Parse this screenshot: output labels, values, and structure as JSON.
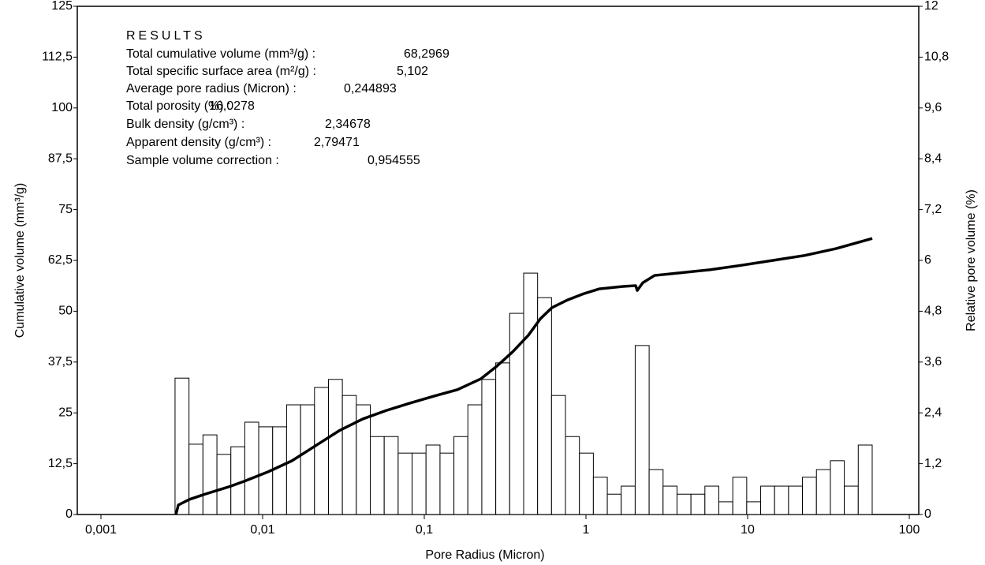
{
  "chart_data": {
    "type": "combo",
    "xlabel": "Pore Radius (Micron)",
    "ylabel": "Cumulative volume (mm³/g)",
    "y2label": "Relative pore volume (%)",
    "xscale": "log",
    "xlim": [
      0.000714,
      114.4
    ],
    "xticks": [
      {
        "value": 0.001,
        "label": "0,001"
      },
      {
        "value": 0.01,
        "label": "0,01"
      },
      {
        "value": 0.1,
        "label": "0,1"
      },
      1,
      10,
      100
    ],
    "ylim": [
      0,
      125
    ],
    "yticks": [
      0,
      {
        "value": 12.5,
        "label": "12,5"
      },
      25,
      {
        "value": 37.5,
        "label": "37,5"
      },
      50,
      {
        "value": 62.5,
        "label": "62,5"
      },
      75,
      {
        "value": 87.5,
        "label": "87,5"
      },
      100,
      {
        "value": 112.5,
        "label": "112,5"
      },
      125
    ],
    "y2lim": [
      0,
      12
    ],
    "y2ticks": [
      0,
      {
        "value": 1.2,
        "label": "1,2"
      },
      {
        "value": 2.4,
        "label": "2,4"
      },
      {
        "value": 3.6,
        "label": "3,6"
      },
      {
        "value": 4.8,
        "label": "4,8"
      },
      6,
      {
        "value": 7.2,
        "label": "7,2"
      },
      {
        "value": 8.4,
        "label": "8,4"
      },
      {
        "value": 9.6,
        "label": "9,6"
      },
      {
        "value": 10.8,
        "label": "10,8"
      },
      12
    ],
    "series": [
      {
        "type": "histogram",
        "axis": "y2",
        "color": "#ffffff",
        "edge_color": "#000000",
        "bins": [
          0.002873,
          0.003505,
          0.004276,
          0.005217,
          0.006362,
          0.007758,
          0.009461,
          0.01154,
          0.01407,
          0.01717,
          0.02094,
          0.02554,
          0.03114,
          0.03799,
          0.04633,
          0.05651,
          0.06893,
          0.08408,
          0.1025,
          0.1251,
          0.1525,
          0.186,
          0.2269,
          0.2767,
          0.3375,
          0.4117,
          0.5022,
          0.6124,
          0.7469,
          0.911,
          1.111,
          1.355,
          1.652,
          2.016,
          2.459,
          2.999,
          3.658,
          4.461,
          5.441,
          6.636,
          8.093,
          9.87,
          12.04,
          14.68,
          17.91,
          21.84,
          26.64,
          32.49,
          39.63,
          48.33,
          58.95
        ],
        "values": [
          3.22,
          1.66,
          1.88,
          1.42,
          1.6,
          2.18,
          2.07,
          2.07,
          2.59,
          2.59,
          3.0,
          3.19,
          2.81,
          2.59,
          1.84,
          1.84,
          1.45,
          1.45,
          1.64,
          1.45,
          1.84,
          2.59,
          3.19,
          3.58,
          4.75,
          5.7,
          5.12,
          2.81,
          1.84,
          1.45,
          0.88,
          0.48,
          0.67,
          3.99,
          1.06,
          0.67,
          0.48,
          0.48,
          0.67,
          0.3,
          0.88,
          0.3,
          0.67,
          0.67,
          0.67,
          0.88,
          1.06,
          1.27,
          0.67,
          1.64
        ]
      },
      {
        "type": "line",
        "axis": "y",
        "color": "#000000",
        "x": [
          0.00291,
          0.00301,
          0.00352,
          0.0044,
          0.00617,
          0.00773,
          0.01082,
          0.01516,
          0.02123,
          0.02972,
          0.04164,
          0.05832,
          0.0817,
          0.1144,
          0.1603,
          0.2245,
          0.2811,
          0.3518,
          0.4404,
          0.5213,
          0.6169,
          0.7724,
          0.967,
          1.21,
          1.695,
          2.029,
          2.076,
          2.245,
          2.657,
          3.721,
          5.834,
          9.142,
          14.33,
          22.45,
          35.18,
          58.98
        ],
        "values": [
          0,
          2.33,
          3.7,
          5.0,
          6.8,
          8.2,
          10.5,
          13.2,
          16.9,
          20.6,
          23.5,
          25.6,
          27.4,
          29.1,
          30.7,
          33.4,
          36.5,
          40.0,
          44.1,
          48.1,
          50.9,
          52.8,
          54.3,
          55.5,
          56.1,
          56.3,
          55.1,
          57.0,
          58.8,
          59.4,
          60.2,
          61.3,
          62.5,
          63.7,
          65.4,
          67.9
        ]
      }
    ],
    "results": {
      "title": "RESULTS",
      "rows": [
        {
          "label": "Total cumulative volume (mm³/g) :",
          "value": "68,2969"
        },
        {
          "label": "Total specific surface area (m²/g) :",
          "value": "5,102"
        },
        {
          "label": "Average pore radius (Micron) :",
          "value": "0,244893"
        },
        {
          "label": "Total  porosity (%) :",
          "value": "16,0278"
        },
        {
          "label": "Bulk density  (g/cm³) :",
          "value": "2,34678"
        },
        {
          "label": "Apparent density (g/cm³) :",
          "value": "2,79471"
        },
        {
          "label": "Sample volume correction :",
          "value": "0,954555"
        }
      ]
    }
  }
}
